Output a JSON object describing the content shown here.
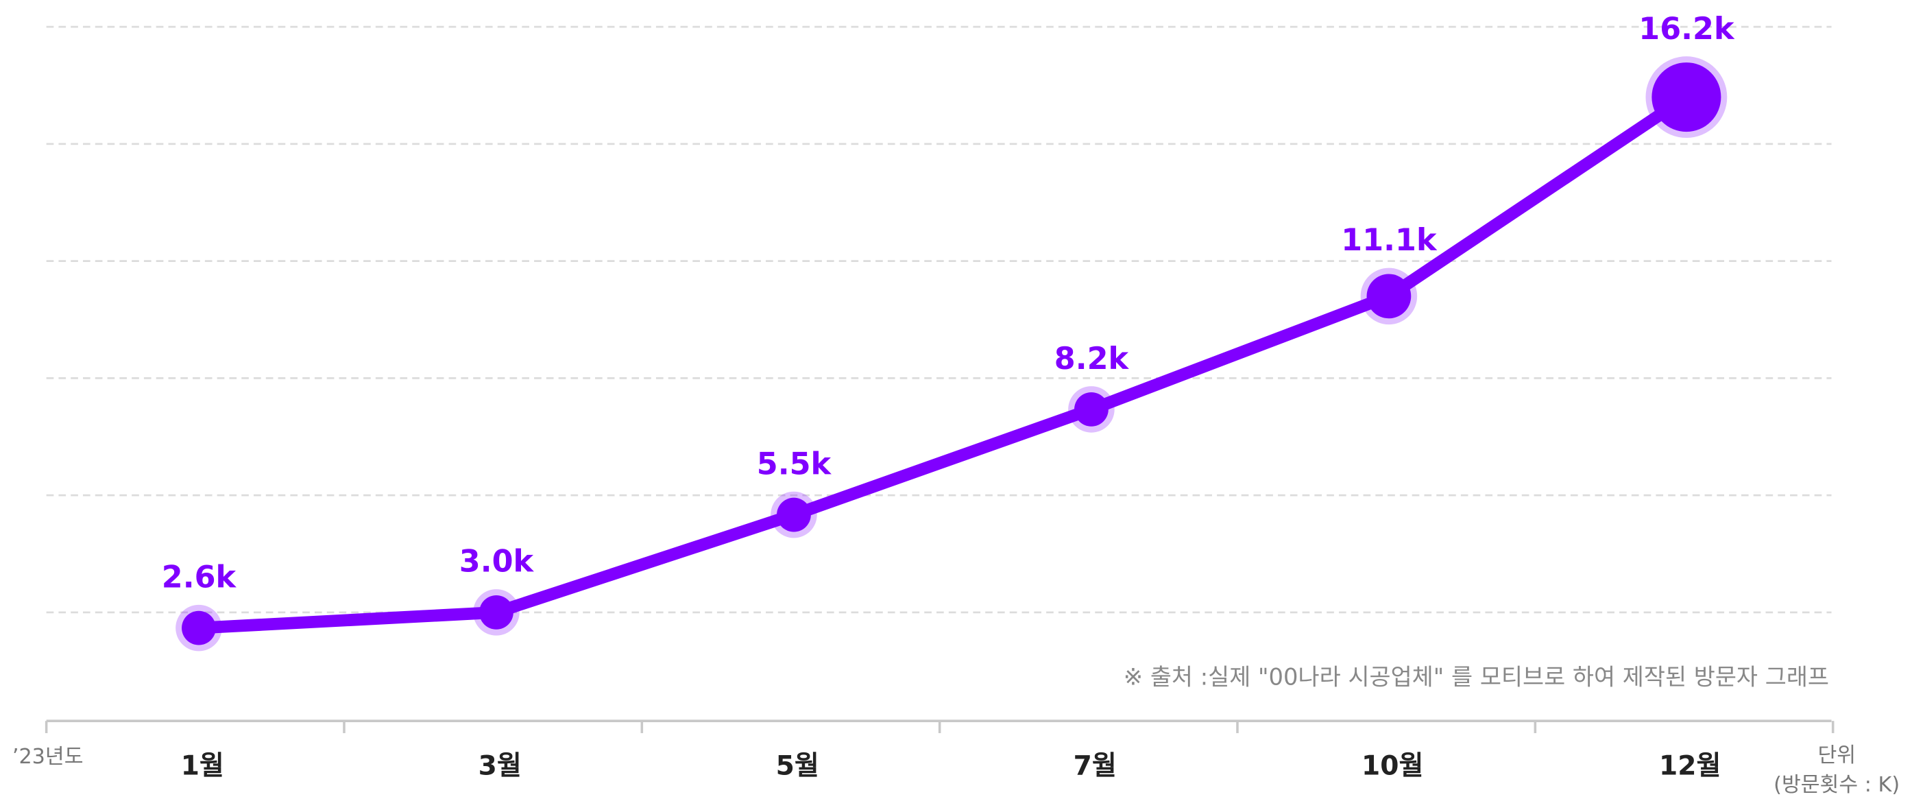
{
  "chart_data": {
    "type": "line",
    "categories": [
      "1월",
      "3월",
      "5월",
      "7월",
      "10월",
      "12월"
    ],
    "series": [
      {
        "color": "#8000ff",
        "values": [
          2.6,
          3.0,
          5.5,
          8.2,
          11.1,
          16.2
        ],
        "value_labels": [
          "2.6k",
          "3.0k",
          "5.5k",
          "8.2k",
          "11.1k",
          "16.2k"
        ]
      }
    ],
    "ylim": [
      0,
      18
    ],
    "yticks": [
      3,
      6,
      9,
      12,
      15,
      18
    ],
    "grid": true,
    "year_label": "’23년도",
    "unit_label": "단위",
    "unit_detail": "(방문횟수 : K)",
    "source_note": "※ 출처 :실제 \"00나라 시공업체\" 를 모티브로 하여 제작된 방문자 그래프"
  }
}
